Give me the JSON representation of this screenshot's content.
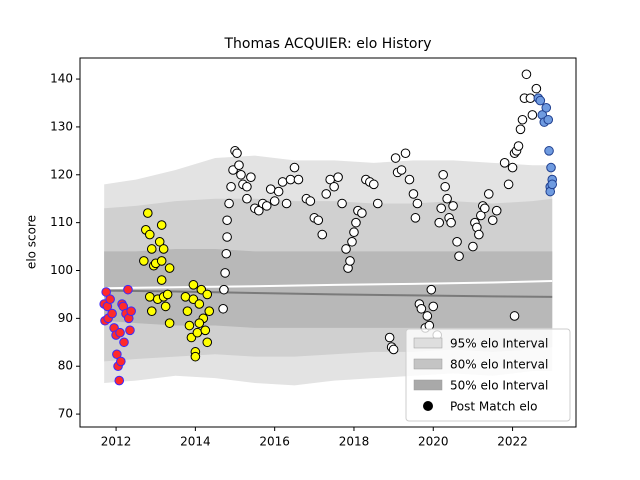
{
  "chart_data": {
    "type": "scatter",
    "title": "Thomas ACQUIER: elo History",
    "ylabel": "elo score",
    "xlim": [
      2011.09,
      2023.6
    ],
    "ylim": [
      67.3,
      144.4
    ],
    "xticks": [
      2012,
      2014,
      2016,
      2018,
      2020,
      2022
    ],
    "yticks": [
      70,
      80,
      90,
      100,
      110,
      120,
      130,
      140
    ],
    "legend": "lower right",
    "bands": [
      {
        "name": "95% elo Interval",
        "color": "#e3e3e3",
        "legend_color": "#dedede",
        "x": [
          2011.7,
          2012.5,
          2013.5,
          2014.5,
          2015.5,
          2016.5,
          2017.5,
          2018.5,
          2019.5,
          2020.5,
          2021.5,
          2022.5,
          2023.0
        ],
        "upper": [
          118,
          119,
          121,
          123.5,
          124,
          123,
          123,
          122.5,
          123,
          123,
          122.5,
          122,
          122
        ],
        "lower": [
          76.5,
          77,
          78,
          77.5,
          76.5,
          76,
          77,
          77.5,
          78,
          78.5,
          78,
          79,
          79
        ]
      },
      {
        "name": "80% elo Interval",
        "color": "#d0d0d0",
        "legend_color": "#c4c4c4",
        "x": [
          2011.7,
          2012.5,
          2013.5,
          2014.5,
          2015.5,
          2016.5,
          2017.5,
          2018.5,
          2019.5,
          2020.5,
          2021.5,
          2022.5,
          2023.0
        ],
        "upper": [
          113,
          113.5,
          114.5,
          115,
          115,
          114.5,
          114.5,
          114,
          114,
          114.5,
          114,
          114.5,
          115
        ],
        "lower": [
          81,
          81.5,
          82,
          82.5,
          82,
          82,
          82.5,
          83,
          83,
          83.5,
          83,
          83.5,
          84
        ]
      },
      {
        "name": "50% elo Interval",
        "color": "#b8b8b8",
        "legend_color": "#a9a9a9",
        "x": [
          2011.7,
          2012.5,
          2013.5,
          2014.5,
          2015.5,
          2016.5,
          2017.5,
          2018.5,
          2019.5,
          2020.5,
          2021.5,
          2022.5,
          2023.0
        ],
        "upper": [
          104,
          104,
          104.5,
          104.5,
          104,
          104,
          104,
          104,
          104,
          104,
          104,
          104,
          104
        ],
        "lower": [
          89.5,
          89,
          88.5,
          88.5,
          88,
          88,
          88,
          88,
          88,
          88,
          88,
          88,
          88
        ]
      }
    ],
    "lines": [
      {
        "color": "#ffffff",
        "x": [
          2011.7,
          2013.5,
          2015.5,
          2017.5,
          2019.5,
          2021.5,
          2023.0
        ],
        "values": [
          96.3,
          96.5,
          96.7,
          97,
          97.2,
          97.5,
          97.8
        ]
      },
      {
        "color": "#7a7a7a",
        "x": [
          2011.7,
          2013.5,
          2015.5,
          2017.5,
          2019.5,
          2021.5,
          2023.0
        ],
        "values": [
          95.8,
          95.6,
          95.3,
          95,
          94.8,
          94.6,
          94.5
        ]
      }
    ],
    "series": [
      {
        "name": "Post Match elo",
        "legend_color": "#000000",
        "groups": [
          {
            "color": "#ff2a2a",
            "edgecolor": "#3a2aff",
            "x": [
              2011.7,
              2011.72,
              2011.75,
              2011.78,
              2011.8,
              2011.85,
              2011.9,
              2011.95,
              2012.0,
              2012.02,
              2012.05,
              2012.08,
              2012.1,
              2012.12,
              2012.15,
              2012.18,
              2012.2,
              2012.25,
              2012.3,
              2012.32,
              2012.35,
              2012.38
            ],
            "values": [
              93,
              89.5,
              95.5,
              92.5,
              90,
              94,
              91,
              88,
              86.5,
              82.5,
              80,
              77,
              87,
              81,
              93,
              92.5,
              85,
              91,
              96,
              90,
              87.5,
              91.5
            ]
          },
          {
            "color": "#ffff00",
            "edgecolor": "#000000",
            "x": [
              2012.7,
              2012.75,
              2012.8,
              2012.85,
              2012.9,
              2012.95,
              2012.85,
              2012.9,
              2013.0,
              2013.05,
              2013.1,
              2013.15,
              2013.15,
              2013.2,
              2013.2,
              2013.25,
              2013.3,
              2013.35,
              2013.35,
              2013.15,
              2013.75,
              2013.8,
              2013.85,
              2013.9,
              2013.95,
              2014.0,
              2014.0,
              2014.05,
              2014.1,
              2014.15,
              2014.2,
              2014.25,
              2014.3,
              2014.3,
              2014.35,
              2014.1,
              2013.95
            ],
            "values": [
              102,
              108.5,
              112,
              107.5,
              104.5,
              101,
              94.5,
              91.5,
              101.5,
              94,
              106,
              102,
              109.5,
              104.5,
              94.5,
              92.5,
              95,
              100.5,
              89,
              98,
              94.5,
              91.5,
              88.5,
              86,
              94,
              83,
              82,
              87,
              93,
              96,
              90,
              87.5,
              95,
              85,
              91.5,
              89,
              97
            ]
          },
          {
            "color": "#ffffff",
            "edgecolor": "#000000",
            "x": [
              2014.7,
              2014.72,
              2014.75,
              2014.78,
              2014.8,
              2014.8,
              2014.85,
              2014.9,
              2014.95,
              2015.0,
              2015.05,
              2015.1,
              2015.15,
              2015.2,
              2015.3,
              2015.3,
              2015.4,
              2015.5,
              2015.6,
              2015.7,
              2015.8,
              2015.9,
              2016.0,
              2016.1,
              2016.2,
              2016.3,
              2016.4,
              2016.5,
              2016.6,
              2016.8,
              2016.9,
              2017.0,
              2017.1,
              2017.2,
              2017.3,
              2017.4,
              2017.5,
              2017.6,
              2017.7,
              2017.8,
              2017.85,
              2017.9,
              2017.95,
              2018.0,
              2018.05,
              2018.1,
              2018.2,
              2018.3,
              2018.4,
              2018.5,
              2018.6,
              2018.9,
              2018.95,
              2019.0,
              2019.05,
              2019.1,
              2019.2,
              2019.3,
              2019.4,
              2019.5,
              2019.55,
              2019.6,
              2019.65,
              2019.7,
              2019.8,
              2019.85,
              2019.9,
              2019.95,
              2020.0,
              2020.1,
              2020.15,
              2020.2,
              2020.25,
              2020.3,
              2020.35,
              2020.4,
              2020.45,
              2020.5,
              2020.6,
              2020.65,
              2021.0,
              2021.05,
              2021.1,
              2021.15,
              2021.2,
              2021.25,
              2021.3,
              2021.4,
              2021.5,
              2021.6,
              2021.8,
              2021.9,
              2022.0,
              2022.05,
              2022.1,
              2022.15,
              2022.2,
              2022.25,
              2022.3,
              2022.35,
              2022.45,
              2022.5,
              2022.6,
              2022.05
            ],
            "values": [
              92,
              96,
              99.5,
              103.5,
              107,
              110.5,
              114,
              117.5,
              121,
              125,
              124.5,
              122,
              120,
              118,
              117.5,
              115,
              119.5,
              113,
              112.5,
              114,
              113.5,
              117,
              114.5,
              116.5,
              118.5,
              114,
              119,
              121.5,
              119,
              115,
              114.5,
              111,
              110.5,
              107.5,
              116,
              119,
              117.5,
              119.5,
              114,
              104.5,
              100.5,
              102,
              106,
              108,
              110,
              112.5,
              112,
              119,
              118.5,
              118,
              114,
              86,
              84,
              83.5,
              123.5,
              120.5,
              121,
              124.5,
              119,
              116,
              111,
              114,
              93,
              92,
              88,
              90.5,
              88.5,
              96,
              92.5,
              86.5,
              110,
              113,
              120,
              117.5,
              115,
              111,
              110,
              113.5,
              106,
              103,
              105,
              110,
              109,
              107.5,
              111.5,
              113.5,
              113,
              116,
              110.5,
              112.5,
              122.5,
              118,
              121.5,
              124.5,
              125,
              126,
              129.5,
              131.5,
              136,
              141,
              136,
              132.5,
              138,
              90.5
            ]
          },
          {
            "color": "#6f9be0",
            "edgecolor": "#1f3f8f",
            "x": [
              2022.65,
              2022.7,
              2022.75,
              2022.8,
              2022.85,
              2022.9,
              2022.92,
              2022.95,
              2022.97,
              2023.0,
              2022.95,
              2023.0
            ],
            "values": [
              136,
              135.5,
              132.5,
              131,
              134,
              131.5,
              125,
              117.5,
              121.5,
              119,
              116.5,
              118
            ]
          }
        ]
      }
    ]
  }
}
